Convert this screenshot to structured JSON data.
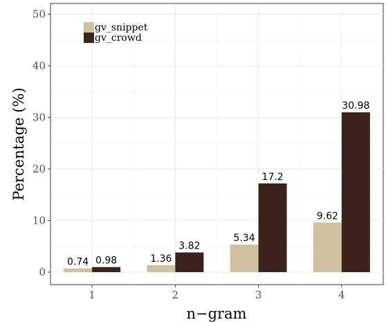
{
  "chart_data": {
    "type": "bar",
    "xlabel": "n−gram",
    "ylabel": "Percentage (%)",
    "categories": [
      "1",
      "2",
      "3",
      "4"
    ],
    "ylim": [
      0,
      51
    ],
    "yticks": [
      0,
      10,
      20,
      30,
      40,
      50
    ],
    "grid": true,
    "legend": "top-left",
    "series": [
      {
        "name": "gv_snippet",
        "color": "#cfc09f",
        "values": [
          0.74,
          1.36,
          5.34,
          9.62
        ],
        "labels": [
          "0.74",
          "1.36",
          "5.34",
          "9.62"
        ]
      },
      {
        "name": "gv_crowd",
        "color": "#3b231c",
        "values": [
          0.98,
          3.82,
          17.2,
          30.98
        ],
        "labels": [
          "0.98",
          "3.82",
          "17.2",
          "30.98"
        ]
      }
    ]
  }
}
